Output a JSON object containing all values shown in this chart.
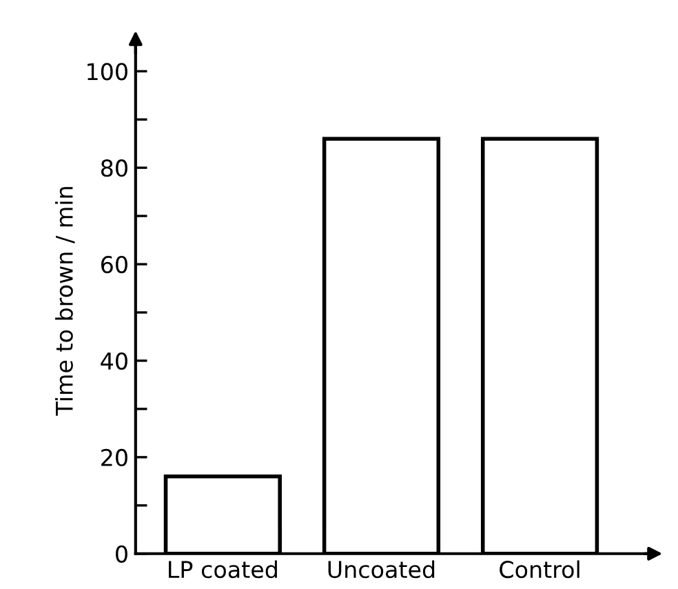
{
  "chart_data": {
    "type": "bar",
    "ylabel": "Time to brown / min",
    "categories": [
      "LP coated",
      "Uncoated",
      "Control"
    ],
    "values": [
      16,
      86,
      86
    ],
    "color": "#ffffff",
    "ylim": [
      0,
      105
    ],
    "yticks": [
      0,
      {
        "value": 10,
        "label": null
      },
      20,
      {
        "value": 30,
        "label": null
      },
      40,
      {
        "value": 50,
        "label": null
      },
      60,
      {
        "value": 70,
        "label": null
      },
      80,
      {
        "value": 90,
        "label": null
      },
      100
    ],
    "grid": false
  }
}
